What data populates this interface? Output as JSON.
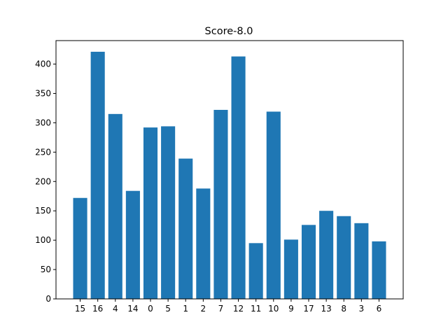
{
  "chart_data": {
    "type": "bar",
    "title": "Score-8.0",
    "xlabel": "",
    "ylabel": "",
    "categories": [
      "15",
      "16",
      "4",
      "14",
      "0",
      "5",
      "1",
      "2",
      "7",
      "12",
      "11",
      "10",
      "9",
      "17",
      "13",
      "8",
      "3",
      "6"
    ],
    "values": [
      172,
      421,
      315,
      184,
      292,
      294,
      239,
      188,
      322,
      413,
      95,
      319,
      101,
      126,
      150,
      141,
      129,
      98
    ],
    "ylim": [
      0,
      440
    ],
    "yticks": [
      0,
      50,
      100,
      150,
      200,
      250,
      300,
      350,
      400
    ],
    "bar_color": "#1f77b4",
    "grid": false,
    "legend": "none"
  }
}
